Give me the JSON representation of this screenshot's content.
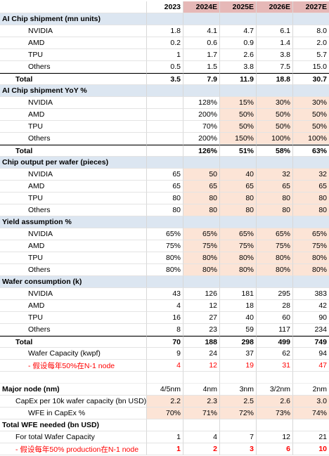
{
  "years": [
    "2023",
    "2024E",
    "2025E",
    "2026E",
    "2027E"
  ],
  "rows": [
    {
      "type": "hdr"
    },
    {
      "type": "sec",
      "label": "AI Chip shipment (mn units)"
    },
    {
      "type": "data",
      "label": "NVIDIA",
      "ind": 1,
      "v": [
        "1.8",
        "4.1",
        "4.7",
        "6.1",
        "8.0"
      ]
    },
    {
      "type": "data",
      "label": "AMD",
      "ind": 1,
      "v": [
        "0.2",
        "0.6",
        "0.9",
        "1.4",
        "2.0"
      ]
    },
    {
      "type": "data",
      "label": "TPU",
      "ind": 1,
      "v": [
        "1",
        "1.7",
        "2.6",
        "3.8",
        "5.7"
      ]
    },
    {
      "type": "data",
      "label": "Others",
      "ind": 1,
      "v": [
        "0.5",
        "1.5",
        "3.8",
        "7.5",
        "15.0"
      ]
    },
    {
      "type": "total",
      "label": "Total",
      "ind": 0,
      "v": [
        "3.5",
        "7.9",
        "11.9",
        "18.8",
        "30.7"
      ],
      "line": true
    },
    {
      "type": "sec",
      "label": "AI Chip shipment YoY %"
    },
    {
      "type": "data",
      "label": "NVIDIA",
      "ind": 1,
      "v": [
        "",
        "128%",
        "15%",
        "30%",
        "30%"
      ],
      "peach": [
        2,
        3,
        4
      ]
    },
    {
      "type": "data",
      "label": "AMD",
      "ind": 1,
      "v": [
        "",
        "200%",
        "50%",
        "50%",
        "50%"
      ],
      "peach": [
        2,
        3,
        4
      ]
    },
    {
      "type": "data",
      "label": "TPU",
      "ind": 1,
      "v": [
        "",
        "70%",
        "50%",
        "50%",
        "50%"
      ],
      "peach": [
        2,
        3,
        4
      ]
    },
    {
      "type": "data",
      "label": "Others",
      "ind": 1,
      "v": [
        "",
        "200%",
        "150%",
        "100%",
        "100%"
      ],
      "peach": [
        2,
        3,
        4
      ]
    },
    {
      "type": "total",
      "label": "Total",
      "ind": 0,
      "v": [
        "",
        "126%",
        "51%",
        "58%",
        "63%"
      ],
      "line": true
    },
    {
      "type": "sec",
      "label": "Chip output per wafer (pieces)"
    },
    {
      "type": "data",
      "label": "NVIDIA",
      "ind": 1,
      "v": [
        "65",
        "50",
        "40",
        "32",
        "32"
      ],
      "peach": [
        1,
        2,
        3,
        4
      ]
    },
    {
      "type": "data",
      "label": "AMD",
      "ind": 1,
      "v": [
        "65",
        "65",
        "65",
        "65",
        "65"
      ],
      "peach": [
        1,
        2,
        3,
        4
      ]
    },
    {
      "type": "data",
      "label": "TPU",
      "ind": 1,
      "v": [
        "80",
        "80",
        "80",
        "80",
        "80"
      ],
      "peach": [
        1,
        2,
        3,
        4
      ]
    },
    {
      "type": "data",
      "label": "Others",
      "ind": 1,
      "v": [
        "80",
        "80",
        "80",
        "80",
        "80"
      ],
      "peach": [
        1,
        2,
        3,
        4
      ]
    },
    {
      "type": "sec",
      "label": "Yield assumption %"
    },
    {
      "type": "data",
      "label": "NVIDIA",
      "ind": 1,
      "v": [
        "65%",
        "65%",
        "65%",
        "65%",
        "65%"
      ],
      "peach": [
        1,
        2,
        3,
        4
      ]
    },
    {
      "type": "data",
      "label": "AMD",
      "ind": 1,
      "v": [
        "75%",
        "75%",
        "75%",
        "75%",
        "75%"
      ],
      "peach": [
        1,
        2,
        3,
        4
      ]
    },
    {
      "type": "data",
      "label": "TPU",
      "ind": 1,
      "v": [
        "80%",
        "80%",
        "80%",
        "80%",
        "80%"
      ],
      "peach": [
        1,
        2,
        3,
        4
      ]
    },
    {
      "type": "data",
      "label": "Others",
      "ind": 1,
      "v": [
        "80%",
        "80%",
        "80%",
        "80%",
        "80%"
      ],
      "peach": [
        1,
        2,
        3,
        4
      ]
    },
    {
      "type": "sec",
      "label": "Wafer consumption (k)"
    },
    {
      "type": "data",
      "label": "NVIDIA",
      "ind": 1,
      "v": [
        "43",
        "126",
        "181",
        "295",
        "383"
      ]
    },
    {
      "type": "data",
      "label": "AMD",
      "ind": 1,
      "v": [
        "4",
        "12",
        "18",
        "28",
        "42"
      ]
    },
    {
      "type": "data",
      "label": "TPU",
      "ind": 1,
      "v": [
        "16",
        "27",
        "40",
        "60",
        "90"
      ]
    },
    {
      "type": "data",
      "label": "Others",
      "ind": 1,
      "v": [
        "8",
        "23",
        "59",
        "117",
        "234"
      ]
    },
    {
      "type": "total",
      "label": "Total",
      "ind": 0,
      "v": [
        "70",
        "188",
        "298",
        "499",
        "749"
      ],
      "line": true
    },
    {
      "type": "data",
      "label": "Wafer Capacity (kwpf)",
      "ind": 1,
      "v": [
        "9",
        "24",
        "37",
        "62",
        "94"
      ]
    },
    {
      "type": "red",
      "label": "- 假设每年50%在N-1 node",
      "ind": 1,
      "v": [
        "4",
        "12",
        "19",
        "31",
        "47"
      ]
    },
    {
      "type": "blank"
    },
    {
      "type": "major",
      "label": "Major node (nm)",
      "ind": -1,
      "v": [
        "4/5nm",
        "4nm",
        "3nm",
        "3/2nm",
        "2nm"
      ]
    },
    {
      "type": "data",
      "label": "CapEx per 10k wafer capacity (bn USD)",
      "ind": 0,
      "v": [
        "2.2",
        "2.3",
        "2.5",
        "2.6",
        "3.0"
      ],
      "peach": [
        0,
        1,
        2,
        3,
        4
      ]
    },
    {
      "type": "data",
      "label": "WFE in CapEx %",
      "ind": 1,
      "v": [
        "70%",
        "71%",
        "72%",
        "73%",
        "74%"
      ],
      "peach": [
        0,
        1,
        2,
        3,
        4
      ]
    },
    {
      "type": "boldlabel",
      "label": "Total WFE needed (bn USD)",
      "ind": -1,
      "v": [
        "",
        "",
        "",
        "",
        ""
      ]
    },
    {
      "type": "data",
      "label": "For total Wafer Capacity",
      "ind": 0,
      "v": [
        "1",
        "4",
        "7",
        "12",
        "21"
      ]
    },
    {
      "type": "redbold",
      "label": "- 假设每年50% production在N-1 node",
      "ind": 0,
      "v": [
        "1",
        "2",
        "3",
        "6",
        "10"
      ]
    }
  ]
}
